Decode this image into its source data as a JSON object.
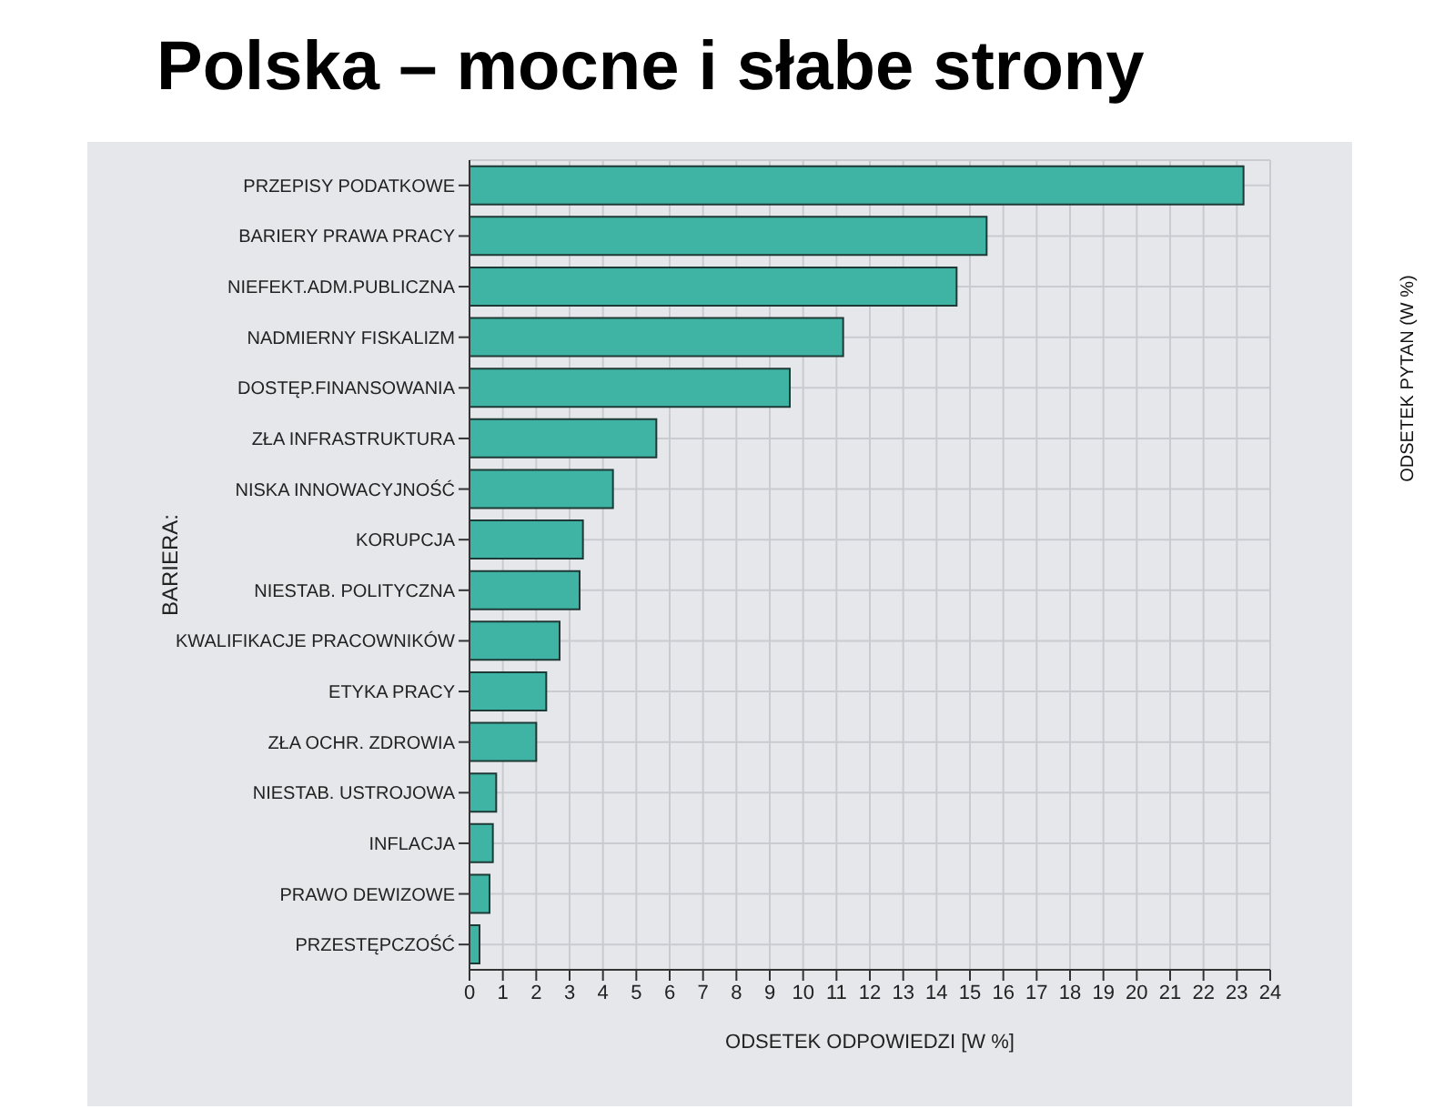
{
  "chart_data": {
    "type": "bar",
    "orientation": "horizontal",
    "title": "Polska – mocne i słabe strony",
    "xlabel": "ODSETEK ODPOWIEDZI [W %]",
    "ylabel": "BARIERA:",
    "annotations": [
      "ODSETEK PYTAN (W %)"
    ],
    "categories": [
      "PRZEPISY PODATKOWE",
      "BARIERY PRAWA PRACY",
      "NIEFEKT.ADM.PUBLICZNA",
      "NADMIERNY FISKALIZM",
      "DOSTĘP.FINANSOWANIA",
      "ZŁA INFRASTRUKTURA",
      "NISKA INNOWACYJNOŚĆ",
      "KORUPCJA",
      "NIESTAB. POLITYCZNA",
      "KWALIFIKACJE PRACOWNIKÓW",
      "ETYKA PRACY",
      "ZŁA OCHR. ZDROWIA",
      "NIESTAB. USTROJOWA",
      "INFLACJA",
      "PRAWO DEWIZOWE",
      "PRZESTĘPCZOŚĆ"
    ],
    "values": [
      23.2,
      15.5,
      14.6,
      11.2,
      9.6,
      5.6,
      4.3,
      3.4,
      3.3,
      2.7,
      2.3,
      2.0,
      0.8,
      0.7,
      0.6,
      0.3
    ],
    "color": "#40b4a4",
    "xlim": [
      0,
      24
    ],
    "xticks": [
      0,
      1,
      2,
      3,
      4,
      5,
      6,
      7,
      8,
      9,
      10,
      11,
      12,
      13,
      14,
      15,
      16,
      17,
      18,
      19,
      20,
      21,
      22,
      23,
      24
    ],
    "grid": true
  }
}
